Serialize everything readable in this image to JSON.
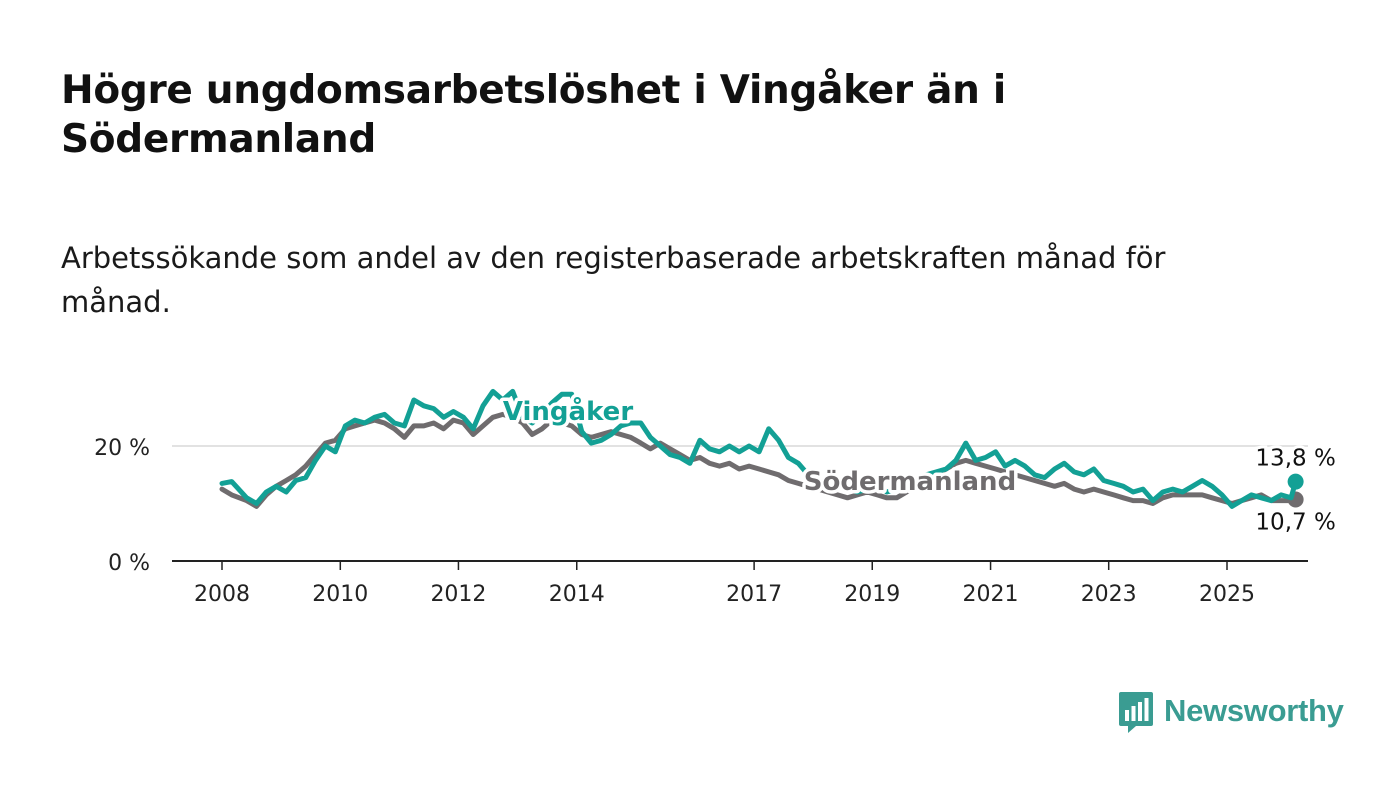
{
  "title": "Högre ungdomsarbetslöshet i Vingåker än i Södermanland",
  "subtitle": "Arbetssökande som andel av den registerbaserade arbetskraften månad för månad.",
  "brand": {
    "name": "Newsworthy",
    "color": "#3a9c92"
  },
  "colors": {
    "vingaker": "#13a095",
    "sodermanland": "#6f6c6e",
    "grid": "#d9d9d9",
    "axis": "#222222"
  },
  "chart_data": {
    "type": "line",
    "x_type": "date",
    "xlim": [
      "2007-07-01",
      "2026-08-01"
    ],
    "ylim": [
      0,
      30
    ],
    "y_ticks": [
      0,
      20
    ],
    "y_tick_labels": [
      "0 %",
      "20 %"
    ],
    "x_ticks": [
      "2008-01-01",
      "2010-01-01",
      "2012-01-01",
      "2014-01-01",
      "2017-01-01",
      "2019-01-01",
      "2021-01-01",
      "2023-01-01",
      "2025-01-01"
    ],
    "x_tick_labels": [
      "2008",
      "2010",
      "2012",
      "2014",
      "2017",
      "2019",
      "2021",
      "2023",
      "2025"
    ],
    "grid": "horizontal",
    "series": [
      {
        "name": "Vingåker",
        "label_at": "2013-03-01",
        "last_label": "13,8 %",
        "points": [
          [
            "2008-01-01",
            13.5
          ],
          [
            "2008-03-01",
            13.8
          ],
          [
            "2008-06-01",
            11.0
          ],
          [
            "2008-08-01",
            10.0
          ],
          [
            "2008-10-01",
            12.0
          ],
          [
            "2008-12-01",
            13.0
          ],
          [
            "2009-02-01",
            12.0
          ],
          [
            "2009-04-01",
            14.0
          ],
          [
            "2009-06-01",
            14.5
          ],
          [
            "2009-08-01",
            17.5
          ],
          [
            "2009-10-01",
            20.0
          ],
          [
            "2009-12-01",
            19.0
          ],
          [
            "2010-02-01",
            23.5
          ],
          [
            "2010-04-01",
            24.5
          ],
          [
            "2010-06-01",
            24.0
          ],
          [
            "2010-08-01",
            25.0
          ],
          [
            "2010-10-01",
            25.5
          ],
          [
            "2010-12-01",
            24.0
          ],
          [
            "2011-02-01",
            23.5
          ],
          [
            "2011-04-01",
            28.0
          ],
          [
            "2011-06-01",
            27.0
          ],
          [
            "2011-08-01",
            26.5
          ],
          [
            "2011-10-01",
            25.0
          ],
          [
            "2011-12-01",
            26.0
          ],
          [
            "2012-02-01",
            25.0
          ],
          [
            "2012-04-01",
            23.0
          ],
          [
            "2012-06-01",
            27.0
          ],
          [
            "2012-08-01",
            29.5
          ],
          [
            "2012-10-01",
            28.0
          ],
          [
            "2012-12-01",
            29.5
          ],
          [
            "2013-02-01",
            25.0
          ],
          [
            "2013-04-01",
            24.0
          ],
          [
            "2013-06-01",
            25.5
          ],
          [
            "2013-08-01",
            27.5
          ],
          [
            "2013-10-01",
            29.0
          ],
          [
            "2013-12-01",
            29.0
          ],
          [
            "2014-02-01",
            22.5
          ],
          [
            "2014-04-01",
            20.5
          ],
          [
            "2014-06-01",
            21.0
          ],
          [
            "2014-08-01",
            22.0
          ],
          [
            "2014-10-01",
            23.5
          ],
          [
            "2014-12-01",
            24.0
          ],
          [
            "2015-02-01",
            24.0
          ],
          [
            "2015-04-01",
            21.5
          ],
          [
            "2015-06-01",
            20.0
          ],
          [
            "2015-08-01",
            18.5
          ],
          [
            "2015-10-01",
            18.0
          ],
          [
            "2015-12-01",
            17.0
          ],
          [
            "2016-02-01",
            21.0
          ],
          [
            "2016-04-01",
            19.5
          ],
          [
            "2016-06-01",
            19.0
          ],
          [
            "2016-08-01",
            20.0
          ],
          [
            "2016-10-01",
            19.0
          ],
          [
            "2016-12-01",
            20.0
          ],
          [
            "2017-02-01",
            19.0
          ],
          [
            "2017-04-01",
            23.0
          ],
          [
            "2017-06-01",
            21.0
          ],
          [
            "2017-08-01",
            18.0
          ],
          [
            "2017-10-01",
            17.0
          ],
          [
            "2017-12-01",
            15.0
          ],
          [
            "2018-02-01",
            14.5
          ],
          [
            "2018-04-01",
            14.0
          ],
          [
            "2018-06-01",
            13.0
          ],
          [
            "2018-08-01",
            12.5
          ],
          [
            "2018-10-01",
            12.0
          ],
          [
            "2018-12-01",
            12.5
          ],
          [
            "2019-02-01",
            13.0
          ],
          [
            "2019-04-01",
            12.0
          ],
          [
            "2019-06-01",
            12.5
          ],
          [
            "2019-08-01",
            13.0
          ],
          [
            "2019-10-01",
            14.0
          ],
          [
            "2019-12-01",
            15.0
          ],
          [
            "2020-02-01",
            15.5
          ],
          [
            "2020-04-01",
            16.0
          ],
          [
            "2020-06-01",
            17.5
          ],
          [
            "2020-08-01",
            20.5
          ],
          [
            "2020-10-01",
            17.5
          ],
          [
            "2020-12-01",
            18.0
          ],
          [
            "2021-02-01",
            19.0
          ],
          [
            "2021-04-01",
            16.5
          ],
          [
            "2021-06-01",
            17.5
          ],
          [
            "2021-08-01",
            16.5
          ],
          [
            "2021-10-01",
            15.0
          ],
          [
            "2021-12-01",
            14.5
          ],
          [
            "2022-02-01",
            16.0
          ],
          [
            "2022-04-01",
            17.0
          ],
          [
            "2022-06-01",
            15.5
          ],
          [
            "2022-08-01",
            15.0
          ],
          [
            "2022-10-01",
            16.0
          ],
          [
            "2022-12-01",
            14.0
          ],
          [
            "2023-02-01",
            13.5
          ],
          [
            "2023-04-01",
            13.0
          ],
          [
            "2023-06-01",
            12.0
          ],
          [
            "2023-08-01",
            12.5
          ],
          [
            "2023-10-01",
            10.5
          ],
          [
            "2023-12-01",
            12.0
          ],
          [
            "2024-02-01",
            12.5
          ],
          [
            "2024-04-01",
            12.0
          ],
          [
            "2024-06-01",
            13.0
          ],
          [
            "2024-08-01",
            14.0
          ],
          [
            "2024-10-01",
            13.0
          ],
          [
            "2024-12-01",
            11.5
          ],
          [
            "2025-02-01",
            9.5
          ],
          [
            "2025-04-01",
            10.5
          ],
          [
            "2025-06-01",
            11.5
          ],
          [
            "2025-08-01",
            11.0
          ],
          [
            "2025-10-01",
            10.5
          ],
          [
            "2025-12-01",
            11.5
          ],
          [
            "2026-02-01",
            11.0
          ],
          [
            "2026-03-01",
            13.8
          ]
        ]
      },
      {
        "name": "Södermanland",
        "label_at": "2019-01-01",
        "last_label": "10,7 %",
        "points": [
          [
            "2008-01-01",
            12.5
          ],
          [
            "2008-03-01",
            11.5
          ],
          [
            "2008-06-01",
            10.5
          ],
          [
            "2008-08-01",
            9.5
          ],
          [
            "2008-10-01",
            11.5
          ],
          [
            "2008-12-01",
            13.0
          ],
          [
            "2009-02-01",
            14.0
          ],
          [
            "2009-04-01",
            15.0
          ],
          [
            "2009-06-01",
            16.5
          ],
          [
            "2009-08-01",
            18.5
          ],
          [
            "2009-10-01",
            20.5
          ],
          [
            "2009-12-01",
            21.0
          ],
          [
            "2010-02-01",
            23.0
          ],
          [
            "2010-04-01",
            23.5
          ],
          [
            "2010-06-01",
            24.0
          ],
          [
            "2010-08-01",
            24.5
          ],
          [
            "2010-10-01",
            24.0
          ],
          [
            "2010-12-01",
            23.0
          ],
          [
            "2011-02-01",
            21.5
          ],
          [
            "2011-04-01",
            23.5
          ],
          [
            "2011-06-01",
            23.5
          ],
          [
            "2011-08-01",
            24.0
          ],
          [
            "2011-10-01",
            23.0
          ],
          [
            "2011-12-01",
            24.5
          ],
          [
            "2012-02-01",
            24.0
          ],
          [
            "2012-04-01",
            22.0
          ],
          [
            "2012-06-01",
            23.5
          ],
          [
            "2012-08-01",
            25.0
          ],
          [
            "2012-10-01",
            25.5
          ],
          [
            "2012-12-01",
            25.0
          ],
          [
            "2013-02-01",
            24.0
          ],
          [
            "2013-04-01",
            22.0
          ],
          [
            "2013-06-01",
            23.0
          ],
          [
            "2013-08-01",
            24.5
          ],
          [
            "2013-10-01",
            24.0
          ],
          [
            "2013-12-01",
            23.5
          ],
          [
            "2014-02-01",
            22.0
          ],
          [
            "2014-04-01",
            21.5
          ],
          [
            "2014-06-01",
            22.0
          ],
          [
            "2014-08-01",
            22.5
          ],
          [
            "2014-10-01",
            22.0
          ],
          [
            "2014-12-01",
            21.5
          ],
          [
            "2015-02-01",
            20.5
          ],
          [
            "2015-04-01",
            19.5
          ],
          [
            "2015-06-01",
            20.5
          ],
          [
            "2015-08-01",
            19.5
          ],
          [
            "2015-10-01",
            18.5
          ],
          [
            "2015-12-01",
            17.5
          ],
          [
            "2016-02-01",
            18.0
          ],
          [
            "2016-04-01",
            17.0
          ],
          [
            "2016-06-01",
            16.5
          ],
          [
            "2016-08-01",
            17.0
          ],
          [
            "2016-10-01",
            16.0
          ],
          [
            "2016-12-01",
            16.5
          ],
          [
            "2017-02-01",
            16.0
          ],
          [
            "2017-04-01",
            15.5
          ],
          [
            "2017-06-01",
            15.0
          ],
          [
            "2017-08-01",
            14.0
          ],
          [
            "2017-10-01",
            13.5
          ],
          [
            "2017-12-01",
            13.0
          ],
          [
            "2018-02-01",
            12.5
          ],
          [
            "2018-04-01",
            12.0
          ],
          [
            "2018-06-01",
            11.5
          ],
          [
            "2018-08-01",
            11.0
          ],
          [
            "2018-10-01",
            11.5
          ],
          [
            "2018-12-01",
            12.0
          ],
          [
            "2019-02-01",
            11.5
          ],
          [
            "2019-04-01",
            11.0
          ],
          [
            "2019-06-01",
            11.0
          ],
          [
            "2019-08-01",
            12.0
          ],
          [
            "2019-10-01",
            13.0
          ],
          [
            "2019-12-01",
            14.0
          ],
          [
            "2020-02-01",
            15.0
          ],
          [
            "2020-04-01",
            16.0
          ],
          [
            "2020-06-01",
            17.0
          ],
          [
            "2020-08-01",
            17.5
          ],
          [
            "2020-10-01",
            17.0
          ],
          [
            "2020-12-01",
            16.5
          ],
          [
            "2021-02-01",
            16.0
          ],
          [
            "2021-04-01",
            15.5
          ],
          [
            "2021-06-01",
            15.0
          ],
          [
            "2021-08-01",
            14.5
          ],
          [
            "2021-10-01",
            14.0
          ],
          [
            "2021-12-01",
            13.5
          ],
          [
            "2022-02-01",
            13.0
          ],
          [
            "2022-04-01",
            13.5
          ],
          [
            "2022-06-01",
            12.5
          ],
          [
            "2022-08-01",
            12.0
          ],
          [
            "2022-10-01",
            12.5
          ],
          [
            "2022-12-01",
            12.0
          ],
          [
            "2023-02-01",
            11.5
          ],
          [
            "2023-04-01",
            11.0
          ],
          [
            "2023-06-01",
            10.5
          ],
          [
            "2023-08-01",
            10.5
          ],
          [
            "2023-10-01",
            10.0
          ],
          [
            "2023-12-01",
            11.0
          ],
          [
            "2024-02-01",
            11.5
          ],
          [
            "2024-04-01",
            11.5
          ],
          [
            "2024-06-01",
            11.5
          ],
          [
            "2024-08-01",
            11.5
          ],
          [
            "2024-10-01",
            11.0
          ],
          [
            "2024-12-01",
            10.5
          ],
          [
            "2025-02-01",
            10.0
          ],
          [
            "2025-04-01",
            10.5
          ],
          [
            "2025-06-01",
            11.0
          ],
          [
            "2025-08-01",
            11.5
          ],
          [
            "2025-10-01",
            10.5
          ],
          [
            "2025-12-01",
            10.5
          ],
          [
            "2026-02-01",
            10.5
          ],
          [
            "2026-03-01",
            10.7
          ]
        ]
      }
    ]
  }
}
